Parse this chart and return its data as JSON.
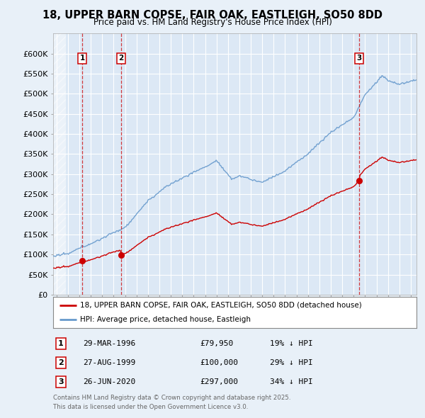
{
  "title": "18, UPPER BARN COPSE, FAIR OAK, EASTLEIGH, SO50 8DD",
  "subtitle": "Price paid vs. HM Land Registry's House Price Index (HPI)",
  "background_color": "#e8f0f8",
  "plot_bg_color": "#dce8f5",
  "hpi_color": "#6699cc",
  "price_color": "#cc0000",
  "transactions": [
    {
      "num": 1,
      "date_label": "29-MAR-1996",
      "x": 1996.24,
      "price": 79950,
      "pct": "19% ↓ HPI"
    },
    {
      "num": 2,
      "date_label": "27-AUG-1999",
      "x": 1999.65,
      "price": 100000,
      "pct": "29% ↓ HPI"
    },
    {
      "num": 3,
      "date_label": "26-JUN-2020",
      "x": 2020.49,
      "price": 297000,
      "pct": "34% ↓ HPI"
    }
  ],
  "legend_line1": "18, UPPER BARN COPSE, FAIR OAK, EASTLEIGH, SO50 8DD (detached house)",
  "legend_line2": "HPI: Average price, detached house, Eastleigh",
  "footer1": "Contains HM Land Registry data © Crown copyright and database right 2025.",
  "footer2": "This data is licensed under the Open Government Licence v3.0.",
  "ylim": [
    0,
    650000
  ],
  "xlim_start": 1993.7,
  "xlim_end": 2025.5
}
